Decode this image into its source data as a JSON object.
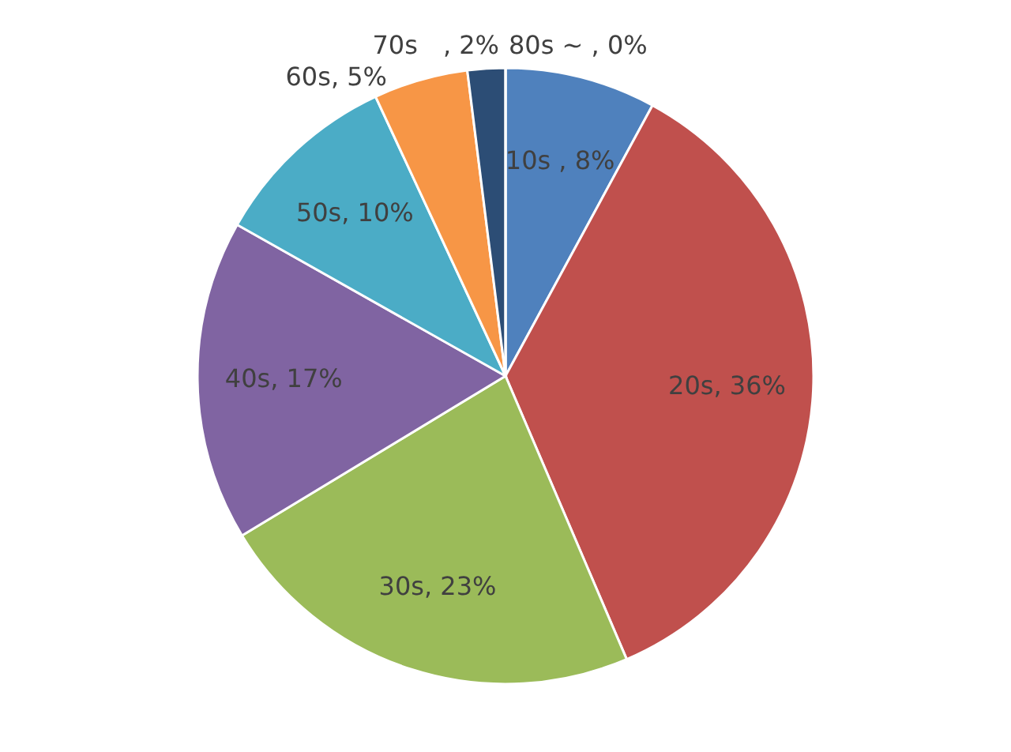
{
  "chart_data": {
    "type": "pie",
    "categories": [
      "10s",
      "20s",
      "30s",
      "40s",
      "50s",
      "60s",
      "70s",
      "80s ~"
    ],
    "values": [
      8,
      36,
      23,
      17,
      10,
      5,
      2,
      0
    ],
    "colors": [
      "#4f81bd",
      "#c0504d",
      "#9bbb59",
      "#8064a2",
      "#4bacc6",
      "#f79646",
      "#2c4d75",
      "#772c2a"
    ],
    "value_labels": [
      " , 8%",
      ", 36%",
      ", 23%",
      ", 17%",
      ", 10%",
      ", 5%",
      "　, 2%",
      " , 0%"
    ]
  }
}
